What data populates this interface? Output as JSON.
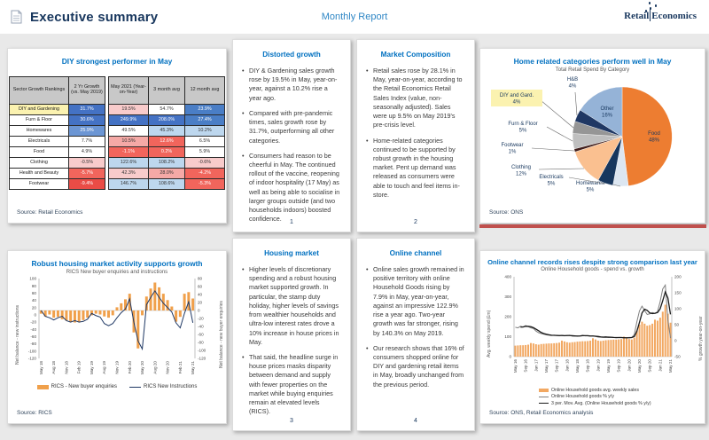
{
  "header": {
    "title": "Executive summary",
    "subtitle": "Monthly Report",
    "logo": {
      "part1": "Retail",
      "part2": "Economics"
    }
  },
  "panels": {
    "table": {
      "title": "DIY strongest performer in May",
      "source": "Source: Retail Economics",
      "columns": [
        "Sector Growth Rankings",
        "2 Yr Growth (vs. May 2019)",
        "May 2021 (Year-on-Year)",
        "3 month avg",
        "12 month avg"
      ],
      "rows": [
        {
          "label": "DIY and Gardening",
          "label_bg": "#FBF2B0",
          "cells": [
            {
              "v": "31.7%",
              "bg": "#4472C4",
              "fg": "#FFFFFF"
            },
            {
              "v": "19.5%",
              "bg": "#F8CBCB",
              "fg": "#333333"
            },
            {
              "v": "54.7%",
              "bg": "#FFFFFF",
              "fg": "#333333"
            },
            {
              "v": "23.9%",
              "bg": "#4A7EC6",
              "fg": "#FFFFFF"
            }
          ]
        },
        {
          "label": "Furn & Floor",
          "label_bg": "#FFFFFF",
          "cells": [
            {
              "v": "30.6%",
              "bg": "#4472C4",
              "fg": "#FFFFFF"
            },
            {
              "v": "249.9%",
              "bg": "#4472C4",
              "fg": "#FFFFFF"
            },
            {
              "v": "208.0%",
              "bg": "#4472C4",
              "fg": "#FFFFFF"
            },
            {
              "v": "27.4%",
              "bg": "#4A7EC6",
              "fg": "#FFFFFF"
            }
          ]
        },
        {
          "label": "Homewares",
          "label_bg": "#FFFFFF",
          "cells": [
            {
              "v": "25.9%",
              "bg": "#6C96D4",
              "fg": "#FFFFFF"
            },
            {
              "v": "49.5%",
              "bg": "#FFFFFF",
              "fg": "#333333"
            },
            {
              "v": "45.3%",
              "bg": "#BDD7EE",
              "fg": "#333333"
            },
            {
              "v": "10.2%",
              "bg": "#BDD7EE",
              "fg": "#333333"
            }
          ]
        },
        {
          "label": "Electricals",
          "label_bg": "#FFFFFF",
          "cells": [
            {
              "v": "7.7%",
              "bg": "#FFFFFF",
              "fg": "#333333"
            },
            {
              "v": "10.5%",
              "bg": "#F5A9A6",
              "fg": "#333333"
            },
            {
              "v": "12.6%",
              "bg": "#F1655C",
              "fg": "#FFFFFF"
            },
            {
              "v": "6.5%",
              "bg": "#FFFFFF",
              "fg": "#333333"
            }
          ]
        },
        {
          "label": "Food",
          "label_bg": "#FFFFFF",
          "cells": [
            {
              "v": "4.9%",
              "bg": "#FFFFFF",
              "fg": "#333333"
            },
            {
              "v": "-1.1%",
              "bg": "#F1655C",
              "fg": "#FFFFFF"
            },
            {
              "v": "0.2%",
              "bg": "#F1655C",
              "fg": "#FFFFFF"
            },
            {
              "v": "5.9%",
              "bg": "#FFFFFF",
              "fg": "#333333"
            }
          ]
        },
        {
          "label": "Clothing",
          "label_bg": "#FFFFFF",
          "cells": [
            {
              "v": "-0.5%",
              "bg": "#F8CBCB",
              "fg": "#333333"
            },
            {
              "v": "122.6%",
              "bg": "#BDD7EE",
              "fg": "#333333"
            },
            {
              "v": "108.2%",
              "bg": "#BDD7EE",
              "fg": "#333333"
            },
            {
              "v": "-0.6%",
              "bg": "#F8CBCB",
              "fg": "#333333"
            }
          ]
        },
        {
          "label": "Health and Beauty",
          "label_bg": "#FFFFFF",
          "cells": [
            {
              "v": "-5.7%",
              "bg": "#F1655C",
              "fg": "#FFFFFF"
            },
            {
              "v": "42.3%",
              "bg": "#F8CBCB",
              "fg": "#333333"
            },
            {
              "v": "28.0%",
              "bg": "#F5A9A6",
              "fg": "#333333"
            },
            {
              "v": "-4.2%",
              "bg": "#F1655C",
              "fg": "#FFFFFF"
            }
          ]
        },
        {
          "label": "Footwear",
          "label_bg": "#FFFFFF",
          "cells": [
            {
              "v": "-9.4%",
              "bg": "#EA4C46",
              "fg": "#FFFFFF"
            },
            {
              "v": "146.7%",
              "bg": "#BDD7EE",
              "fg": "#333333"
            },
            {
              "v": "108.6%",
              "bg": "#BDD7EE",
              "fg": "#333333"
            },
            {
              "v": "-5.3%",
              "bg": "#F1655C",
              "fg": "#FFFFFF"
            }
          ]
        }
      ]
    },
    "distorted": {
      "title": "Distorted growth",
      "page": "1",
      "bullets": [
        "DIY & Gardening sales growth rose by 19.5% in May, year-on-year, against a 10.2% rise a year ago.",
        "Compared with pre-pandemic times, sales growth rose by 31.7%, outperforming all other categories.",
        "Consumers had reason to be cheerful in May. The continued rollout of the vaccine, reopening of indoor hospitality (17 May) as well as being able to socialise in larger groups outside (and two households indoors) boosted confidence."
      ]
    },
    "market": {
      "title": "Market Composition",
      "page": "2",
      "bullets": [
        "Retail sales rose by 28.1% in May, year-on-year, according to the Retail Economics Retail Sales Index (value, non-seasonally adjusted). Sales were up 9.5% on May 2019's pre-crisis level.",
        "Home-related categories continued to be supported by robust growth in the housing market. Pent up demand was released as consumers were able to touch and feel items in-store."
      ]
    },
    "pie": {
      "title": "Home related categories perform well in May",
      "source": "Source: ONS",
      "chart_data": {
        "type": "pie",
        "title": "Total Retail Spend By Category",
        "slices": [
          {
            "label": "Food",
            "value": 48,
            "color": "#ED7D31",
            "inside": true
          },
          {
            "label": "Homewares",
            "value": 5,
            "color": "#DCE6F1"
          },
          {
            "label": "Electricals",
            "value": 5,
            "color": "#17375E"
          },
          {
            "label": "Clothing",
            "value": 12,
            "color": "#FAC090"
          },
          {
            "label": "Footwear",
            "value": 1,
            "color": "#3F1D1A"
          },
          {
            "label": "Furn & Floor",
            "value": 5,
            "color": "#BFBFBF"
          },
          {
            "label": "DIY and Gard.",
            "value": 4,
            "color": "#969696",
            "highlight": true
          },
          {
            "label": "H&B",
            "value": 4,
            "color": "#203864"
          },
          {
            "label": "Other",
            "value": 16,
            "color": "#95B3D7",
            "inside": true
          }
        ]
      }
    },
    "housing": {
      "title": "Housing market",
      "page": "3",
      "bullets": [
        "Higher levels of discretionary spending and a robust housing market supported growth. In particular, the stamp duty holiday, higher levels of savings from wealthier households and ultra-low interest rates drove a 10% increase in house prices in May.",
        "That said, the headline surge in house prices masks disparity between demand and supply with fewer properties on the market while buying enquiries remain at elevated levels (RICS)."
      ]
    },
    "online_text": {
      "title": "Online channel",
      "page": "4",
      "bullets": [
        "Online sales growth remained in positive territory with online Household Goods rising by 7.9% in May, year-on-year, against an impressive 122.9% rise a year ago. Two-year growth was far stronger, rising by 140.3% on May 2019.",
        "Our research shows that 16% of consumers shopped online for DIY and gardening retail items in May, broadly unchanged from the previous period."
      ]
    },
    "rics": {
      "title": "Robust housing market activity supports growth",
      "source": "Source: RICS",
      "chart_data": {
        "type": "bar+line",
        "title": "RICS New buyer enquiries and instructions",
        "ylabel_left": "Net balance - new instructions",
        "ylabel_right": "Net balance - new buyer enquiries",
        "ylim_left": [
          -120,
          100
        ],
        "ylim_right": [
          -120,
          80
        ],
        "yticks_left": [
          100,
          80,
          60,
          40,
          20,
          0,
          -20,
          -40,
          -60,
          -80,
          -100,
          -120
        ],
        "yticks_right": [
          80,
          60,
          40,
          20,
          0,
          -20,
          -40,
          -60,
          -80,
          -100,
          -120
        ],
        "x_tick_labels": [
          "May 18",
          "Aug 18",
          "Nov 18",
          "Feb 19",
          "May 19",
          "Aug 19",
          "Nov 19",
          "Feb 20",
          "May 20",
          "Aug 20",
          "Nov 20",
          "Feb 21",
          "May 21"
        ],
        "tick_every": 3,
        "series": [
          {
            "name": "RICS - New buyer enquiries",
            "type": "bar",
            "axis": "right",
            "color": "#F0A04B",
            "values": [
              -8,
              -15,
              -10,
              -18,
              -16,
              -22,
              -25,
              -28,
              -30,
              -28,
              -24,
              -18,
              -12,
              -8,
              -10,
              -15,
              -18,
              -12,
              8,
              18,
              28,
              42,
              -55,
              -95,
              -12,
              35,
              55,
              70,
              58,
              42,
              26,
              10,
              -28,
              -16,
              42,
              46,
              30
            ]
          },
          {
            "name": "RICS New Instructions",
            "type": "line",
            "axis": "left",
            "color": "#1F3864",
            "values": [
              12,
              -4,
              -8,
              -14,
              -8,
              -4,
              -16,
              -20,
              -16,
              -20,
              -18,
              -12,
              4,
              -2,
              -6,
              -24,
              -30,
              -24,
              -8,
              6,
              16,
              44,
              -20,
              -72,
              -94,
              28,
              48,
              66,
              48,
              32,
              20,
              8,
              -22,
              -36,
              4,
              36,
              -22
            ]
          }
        ]
      }
    },
    "online_chart": {
      "title": "Online channel records rises despite strong comparison last year",
      "source": "Source: ONS, Retail Economics analysis",
      "chart_data": {
        "type": "bar+line",
        "title": "Online Household goods - spend vs. growth",
        "ylabel_left": "Avg. weekly spend (£m)",
        "ylabel_right": "% growth year-on-year",
        "ylim_left": [
          0,
          400
        ],
        "ylim_right": [
          -50,
          200
        ],
        "yticks_left": [
          400,
          300,
          200,
          100,
          0
        ],
        "yticks_right": [
          200,
          150,
          100,
          50,
          0,
          -50
        ],
        "x_tick_labels": [
          "May 16",
          "Sep 16",
          "Jan 17",
          "May 17",
          "Sep 17",
          "Jan 18",
          "May 18",
          "Sep 18",
          "Jan 19",
          "May 19",
          "Sep 19",
          "Jan 20",
          "May 20",
          "Sep 20",
          "Jan 21",
          "May 21"
        ],
        "tick_every": 4,
        "series": [
          {
            "name": "Online Household goods avg. weekly sales",
            "type": "bar",
            "axis": "left",
            "color": "#F2A862",
            "values": [
              55,
              56,
              57,
              57,
              58,
              60,
              68,
              66,
              62,
              60,
              63,
              64,
              65,
              66,
              66,
              67,
              68,
              70,
              80,
              76,
              72,
              70,
              72,
              73,
              75,
              76,
              77,
              77,
              78,
              80,
              92,
              86,
              80,
              78,
              80,
              82,
              83,
              84,
              85,
              85,
              86,
              88,
              100,
              94,
              88,
              86,
              95,
              130,
              160,
              175,
              165,
              155,
              158,
              165,
              185,
              180,
              195,
              225,
              260,
              215,
              170
            ]
          },
          {
            "name": "Online Household goods % y/y",
            "type": "line",
            "axis": "right",
            "color": "#7F7F7F",
            "values": [
              42,
              40,
              45,
              43,
              47,
              44,
              40,
              38,
              30,
              25,
              22,
              20,
              18,
              17,
              16,
              17,
              16,
              15,
              17,
              15,
              16,
              17,
              14,
              14,
              15,
              15,
              17,
              15,
              15,
              14,
              15,
              13,
              11,
              11,
              11,
              12,
              10,
              10,
              10,
              9,
              10,
              10,
              8,
              9,
              10,
              10,
              19,
              59,
              93,
              108,
              94,
              82,
              84,
              88,
              85,
              91,
              122,
              162,
              174,
              65,
              8
            ]
          },
          {
            "name": "3 per. Mov. Avg. (Online Household goods % y/y)",
            "type": "line-ma3",
            "axis": "right",
            "color": "#1A1A1A"
          }
        ]
      }
    }
  }
}
